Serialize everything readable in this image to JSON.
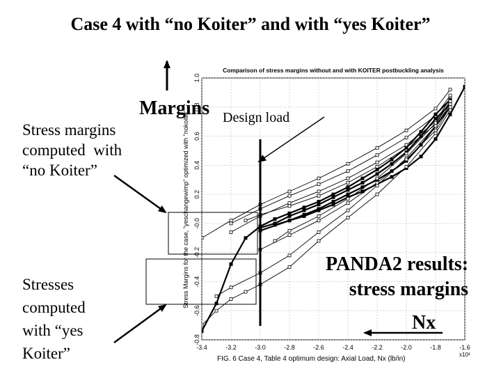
{
  "slide": {
    "title": "Case 4 with “no Koiter” and with “yes Koiter”",
    "margins_label": "Margins",
    "design_load_label": "Design load",
    "stress_no_koiter": [
      "Stress margins",
      "computed  with",
      "“no Koiter”"
    ],
    "stress_yes_koiter": [
      "Stresses",
      "computed",
      "with “yes",
      "Koiter”"
    ],
    "panda2_results": [
      "PANDA2 results:",
      "stress margins"
    ],
    "nx_label": "Nx"
  },
  "chart_data": {
    "type": "line",
    "title": "Comparison of stress margins without and with KOITER postbuckling analysis",
    "ylabel": "Stress Margins for the case, \"yeschangewimp\" optimized with \"nokoiter\"",
    "caption": "FIG. 6 Case 4, Table 4 optimum design: Axial Load, Nx (lb/in)",
    "x_multiplier_label": "x10³",
    "xlim": [
      -3.4,
      -1.6
    ],
    "ylim": [
      -0.8,
      1.0
    ],
    "x_ticks": [
      -3.4,
      -3.2,
      -3.0,
      -2.8,
      -2.6,
      -2.4,
      -2.2,
      -2.0,
      -1.8,
      -1.6
    ],
    "x_tick_labels": [
      "-3.4",
      "-3.2",
      "-3.0",
      "-2.8",
      "-2.6",
      "-2.4",
      "-2.2",
      "-2.0",
      "-1.8",
      "-1.6"
    ],
    "y_ticks": [
      -0.8,
      -0.6,
      -0.4,
      -0.2,
      0.0,
      0.2,
      0.4,
      0.6,
      0.8,
      1.0
    ],
    "y_tick_labels": [
      "-0.8",
      "-0.6",
      "-0.4",
      "-0.2",
      "-0.0",
      "0.2",
      "0.4",
      "0.6",
      "0.8",
      "1.0"
    ],
    "grid": true,
    "design_load_x": -3.0,
    "series": [
      {
        "style": "thin",
        "values": [
          [
            -3.4,
            -0.1
          ],
          [
            -3.2,
            0.02
          ],
          [
            -3.0,
            0.13
          ],
          [
            -2.8,
            0.22
          ],
          [
            -2.6,
            0.31
          ],
          [
            -2.4,
            0.41
          ],
          [
            -2.2,
            0.52
          ],
          [
            -2.0,
            0.64
          ],
          [
            -1.8,
            0.79
          ],
          [
            -1.7,
            0.92
          ]
        ]
      },
      {
        "style": "thin",
        "values": [
          [
            -3.2,
            0.0
          ],
          [
            -3.0,
            0.1
          ],
          [
            -2.8,
            0.19
          ],
          [
            -2.6,
            0.27
          ],
          [
            -2.4,
            0.36
          ],
          [
            -2.2,
            0.47
          ],
          [
            -2.0,
            0.59
          ],
          [
            -1.8,
            0.74
          ],
          [
            -1.7,
            0.88
          ]
        ]
      },
      {
        "style": "thin",
        "values": [
          [
            -3.2,
            -0.06
          ],
          [
            -3.0,
            0.05
          ],
          [
            -2.8,
            0.14
          ],
          [
            -2.6,
            0.22
          ],
          [
            -2.4,
            0.31
          ],
          [
            -2.2,
            0.42
          ],
          [
            -2.0,
            0.54
          ],
          [
            -1.8,
            0.7
          ],
          [
            -1.7,
            0.86
          ]
        ]
      },
      {
        "style": "thin",
        "values": [
          [
            -3.1,
            0.02
          ],
          [
            -3.0,
            0.06
          ],
          [
            -2.8,
            0.12
          ],
          [
            -2.6,
            0.19
          ],
          [
            -2.4,
            0.28
          ],
          [
            -2.2,
            0.39
          ],
          [
            -2.0,
            0.52
          ],
          [
            -1.8,
            0.68
          ],
          [
            -1.7,
            0.84
          ]
        ]
      },
      {
        "style": "thick",
        "values": [
          [
            -3.4,
            -0.74
          ],
          [
            -3.3,
            -0.55
          ],
          [
            -3.2,
            -0.28
          ],
          [
            -3.1,
            -0.1
          ],
          [
            -3.0,
            -0.02
          ],
          [
            -2.9,
            0.03
          ],
          [
            -2.8,
            0.07
          ],
          [
            -2.7,
            0.11
          ],
          [
            -2.6,
            0.15
          ],
          [
            -2.5,
            0.2
          ],
          [
            -2.4,
            0.25
          ],
          [
            -2.3,
            0.31
          ],
          [
            -2.2,
            0.37
          ],
          [
            -2.1,
            0.44
          ],
          [
            -2.0,
            0.52
          ],
          [
            -1.9,
            0.63
          ],
          [
            -1.8,
            0.75
          ],
          [
            -1.7,
            0.85
          ]
        ]
      },
      {
        "style": "thick",
        "values": [
          [
            -3.0,
            -0.03
          ],
          [
            -2.9,
            0.0
          ],
          [
            -2.8,
            0.05
          ],
          [
            -2.7,
            0.09
          ],
          [
            -2.6,
            0.13
          ],
          [
            -2.5,
            0.18
          ],
          [
            -2.4,
            0.23
          ],
          [
            -2.3,
            0.28
          ],
          [
            -2.2,
            0.34
          ],
          [
            -2.1,
            0.41
          ],
          [
            -2.0,
            0.49
          ],
          [
            -1.9,
            0.6
          ],
          [
            -1.8,
            0.72
          ],
          [
            -1.7,
            0.82
          ]
        ]
      },
      {
        "style": "thick",
        "values": [
          [
            -3.0,
            -0.05
          ],
          [
            -2.8,
            0.02
          ],
          [
            -2.7,
            0.06
          ],
          [
            -2.6,
            0.1
          ],
          [
            -2.5,
            0.15
          ],
          [
            -2.4,
            0.2
          ],
          [
            -2.3,
            0.25
          ],
          [
            -2.2,
            0.3
          ],
          [
            -2.1,
            0.36
          ],
          [
            -2.0,
            0.43
          ],
          [
            -1.9,
            0.54
          ],
          [
            -1.8,
            0.67
          ],
          [
            -1.7,
            0.8
          ]
        ]
      },
      {
        "style": "thick",
        "values": [
          [
            -2.9,
            -0.01
          ],
          [
            -2.8,
            0.02
          ],
          [
            -2.7,
            0.05
          ],
          [
            -2.6,
            0.09
          ],
          [
            -2.5,
            0.13
          ],
          [
            -2.4,
            0.18
          ],
          [
            -2.3,
            0.22
          ],
          [
            -2.2,
            0.27
          ],
          [
            -2.1,
            0.32
          ],
          [
            -2.0,
            0.38
          ],
          [
            -1.9,
            0.46
          ],
          [
            -1.8,
            0.58
          ],
          [
            -1.7,
            0.75
          ],
          [
            -1.6,
            0.94
          ]
        ]
      },
      {
        "style": "thin",
        "values": [
          [
            -3.4,
            -0.7
          ],
          [
            -3.3,
            -0.6
          ],
          [
            -3.2,
            -0.52
          ],
          [
            -3.1,
            -0.47
          ],
          [
            -3.0,
            -0.42
          ],
          [
            -2.8,
            -0.3
          ],
          [
            -2.6,
            -0.12
          ],
          [
            -2.4,
            0.04
          ],
          [
            -2.2,
            0.2
          ],
          [
            -2.0,
            0.39
          ],
          [
            -1.8,
            0.62
          ],
          [
            -1.7,
            0.78
          ]
        ]
      },
      {
        "style": "thin",
        "values": [
          [
            -3.3,
            -0.5
          ],
          [
            -3.2,
            -0.44
          ],
          [
            -3.0,
            -0.34
          ],
          [
            -2.8,
            -0.22
          ],
          [
            -2.6,
            -0.06
          ],
          [
            -2.4,
            0.09
          ],
          [
            -2.2,
            0.26
          ],
          [
            -2.0,
            0.45
          ],
          [
            -1.8,
            0.67
          ],
          [
            -1.7,
            0.82
          ]
        ]
      },
      {
        "style": "thin",
        "values": [
          [
            -3.0,
            -0.18
          ],
          [
            -2.8,
            -0.08
          ],
          [
            -2.6,
            0.02
          ],
          [
            -2.4,
            0.14
          ],
          [
            -2.2,
            0.28
          ],
          [
            -2.0,
            0.44
          ],
          [
            -1.8,
            0.64
          ],
          [
            -1.7,
            0.8
          ]
        ]
      },
      {
        "style": "thin",
        "values": [
          [
            -2.9,
            -0.12
          ],
          [
            -2.8,
            -0.05
          ],
          [
            -2.6,
            0.05
          ],
          [
            -2.4,
            0.17
          ],
          [
            -2.2,
            0.31
          ],
          [
            -2.0,
            0.48
          ],
          [
            -1.8,
            0.69
          ],
          [
            -1.7,
            0.84
          ]
        ]
      }
    ]
  }
}
